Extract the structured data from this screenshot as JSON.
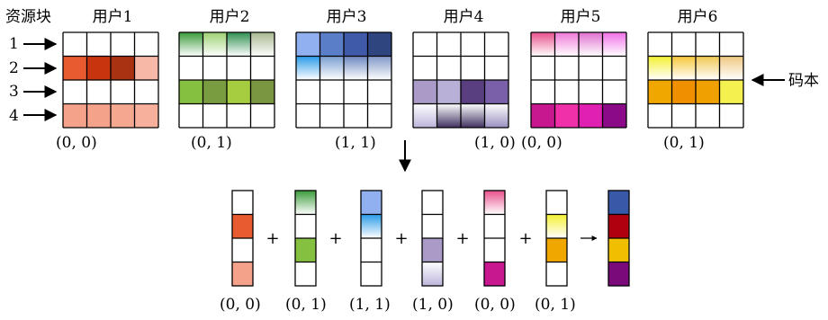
{
  "resource_block_label": "资源块",
  "codebook_label": "码本",
  "row_labels": [
    "1",
    "2",
    "3",
    "4"
  ],
  "plus_sign": "+",
  "users": [
    {
      "name": "用户1",
      "coord": "(0, 0)",
      "active_rows": [
        1,
        3
      ],
      "colors": [
        [
          "#e85a30",
          "#c8340e",
          "#a83212",
          "#f7b8a8"
        ],
        [
          "#f5a28a",
          "#f5a28a",
          "#f5a890",
          "#f7b09c"
        ]
      ],
      "gradient": [
        null,
        null
      ]
    },
    {
      "name": "用户2",
      "coord": "(0, 1)",
      "active_rows": [
        0,
        2
      ],
      "colors": [
        [
          "#3a9b3a",
          "#9bd070",
          "#2f8f50",
          "#a8b890"
        ],
        [
          "#86c040",
          "#7a9c40",
          "#a6cc40",
          "#7a9640"
        ]
      ],
      "gradient": [
        "top",
        null
      ]
    },
    {
      "name": "用户3",
      "coord": "(1, 1)",
      "active_rows": [
        0,
        1
      ],
      "colors": [
        [
          "#90b0f0",
          "#5a7fc8",
          "#3f5aa8",
          "#2f4580"
        ],
        [
          "#2a9be8",
          "#7a9ed0",
          "#6c88c0",
          "#8098c8"
        ]
      ],
      "gradient": [
        null,
        "top"
      ]
    },
    {
      "name": "用户4",
      "coord": "(1, 0)",
      "active_rows": [
        2,
        3
      ],
      "colors": [
        [
          "#a99ac8",
          "#b9b0d8",
          "#5a3f80",
          "#7a60a8"
        ],
        [
          "#bdb4dc",
          "#403060",
          "#403060",
          "#9a90c0"
        ]
      ],
      "gradient": [
        null,
        "bottom"
      ]
    },
    {
      "name": "用户5",
      "coord": "(0, 0)",
      "active_rows": [
        0,
        3
      ],
      "colors": [
        [
          "#e8508c",
          "#f078d8",
          "#e070d0",
          "#f070e8"
        ],
        [
          "#c81890",
          "#f030a8",
          "#e020b0",
          "#8a0a88"
        ]
      ],
      "gradient": [
        "top",
        null
      ]
    },
    {
      "name": "用户6",
      "coord": "(0, 1)",
      "active_rows": [
        1,
        2
      ],
      "colors": [
        [
          "#f4f030",
          "#f7c838",
          "#f0c850",
          "#f0c880"
        ],
        [
          "#f0a800",
          "#f09000",
          "#f0a000",
          "#f4f050"
        ]
      ],
      "gradient": [
        "top",
        null
      ]
    }
  ],
  "result": {
    "colors": [
      "#3858a8",
      "#b00010",
      "#f0c000",
      "#7a0a7a"
    ]
  }
}
